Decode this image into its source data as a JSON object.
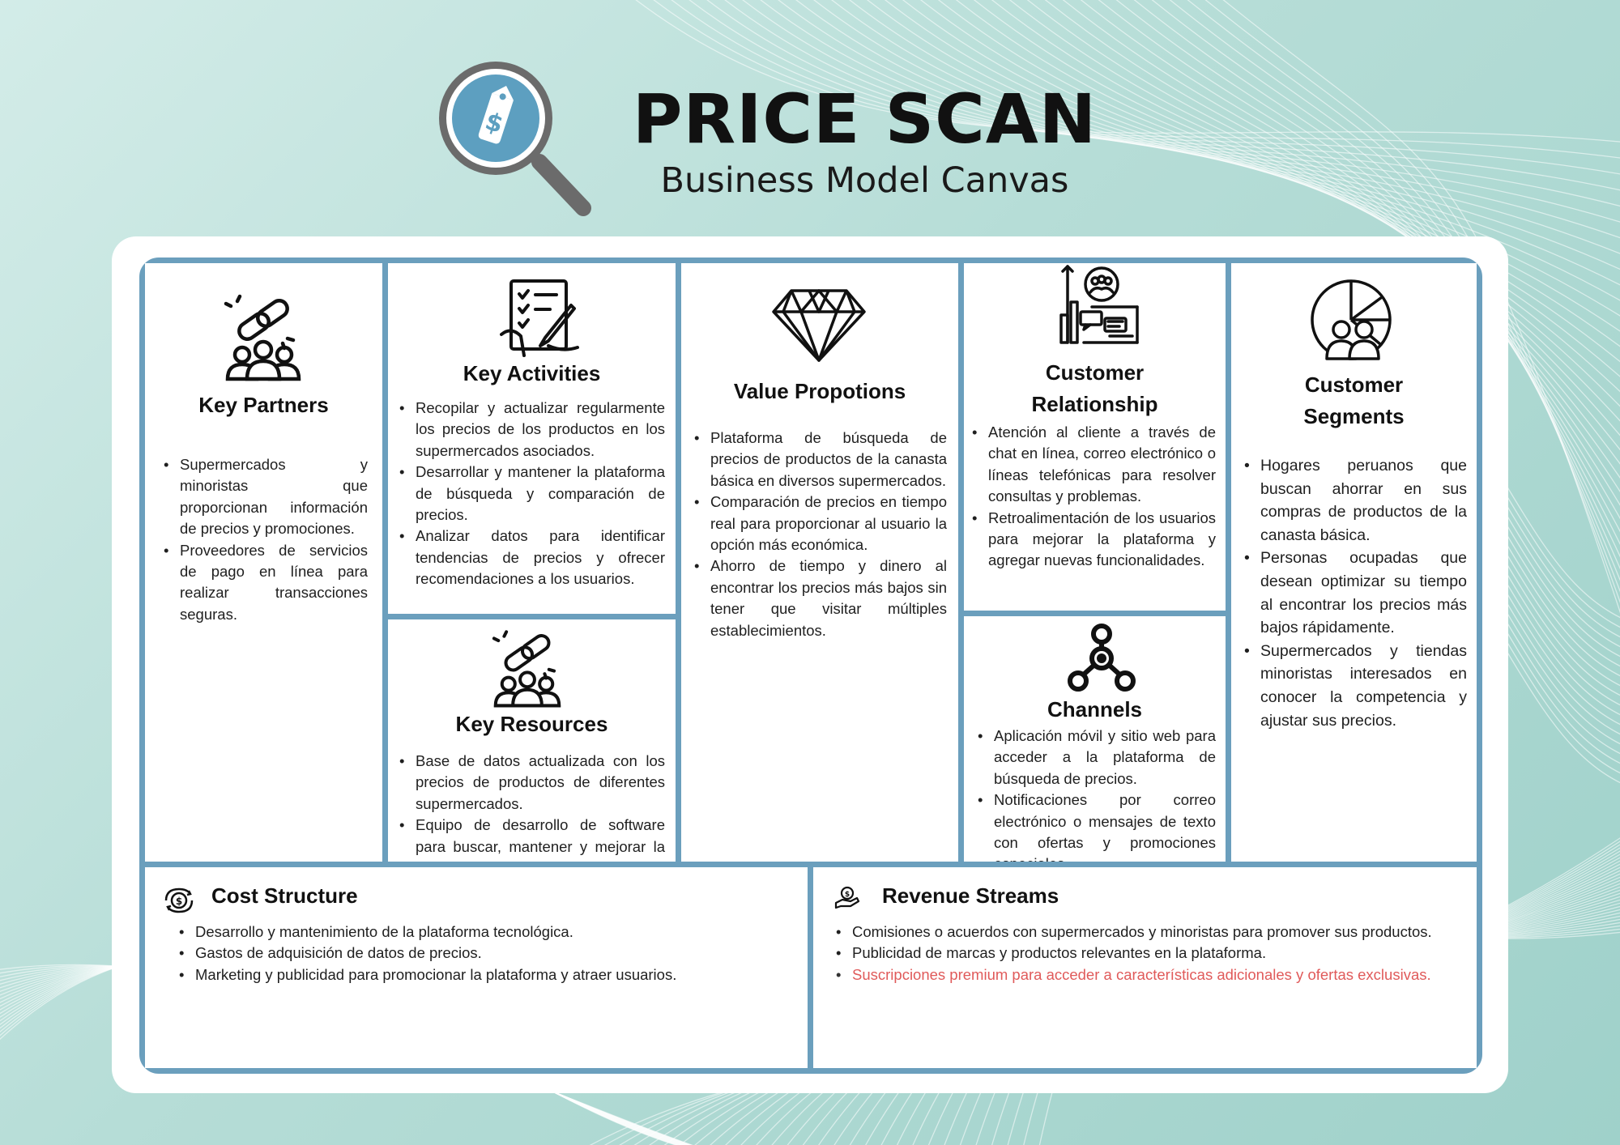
{
  "header": {
    "title": "PRICE SCAN",
    "subtitle": "Business Model Canvas",
    "logo_icon": "price-tag-magnifier-icon",
    "logo_symbol": "$"
  },
  "colors": {
    "frame": "#6b9fbd",
    "logo_circle": "#5d9fc0",
    "highlight_text": "#e05a5a"
  },
  "blocks": {
    "key_partners": {
      "title": "Key Partners",
      "icon": "chain-people-icon",
      "items": [
        "Supermercados y minoristas que proporcionan información de precios y promociones.",
        "Proveedores de servicios de pago en línea para realizar transacciones seguras."
      ]
    },
    "key_activities": {
      "title": "Key Activities",
      "icon": "checklist-pen-icon",
      "items": [
        "Recopilar y actualizar regularmente los precios de los productos en los supermercados asociados.",
        "Desarrollar y mantener la plataforma de búsqueda y comparación de precios.",
        "Analizar datos para identificar tendencias de precios y ofrecer recomendaciones a los usuarios."
      ]
    },
    "key_resources": {
      "title": "Key Resources",
      "icon": "chain-people-icon",
      "items": [
        "Base de datos actualizada con los precios de productos de diferentes supermercados.",
        "Equipo de desarrollo de software para buscar, mantener y mejorar la plataforma."
      ]
    },
    "value_propositions": {
      "title": "Value Propotions",
      "icon": "diamond-icon",
      "items": [
        "Plataforma de búsqueda de precios de productos de la canasta básica en diversos supermercados.",
        "Comparación de precios en tiempo real para proporcionar al usuario la opción más económica.",
        "Ahorro de tiempo y dinero al encontrar los precios más bajos sin tener que visitar múltiples establecimientos."
      ]
    },
    "customer_relationship": {
      "title_line1": "Customer",
      "title_line2": "Relationship",
      "icon": "customer-chart-icon",
      "items": [
        "Atención al cliente a través de chat en línea, correo electrónico o líneas telefónicas para resolver consultas y problemas.",
        "Retroalimentación de los usuarios para mejorar la plataforma y agregar nuevas funcionalidades."
      ]
    },
    "channels": {
      "title": "Channels",
      "icon": "network-nodes-icon",
      "items": [
        "Aplicación móvil y sitio web para acceder a la plataforma de búsqueda de precios.",
        "Notificaciones por correo electrónico o mensajes de texto con ofertas y promociones especiales."
      ]
    },
    "customer_segments": {
      "title_line1": "Customer",
      "title_line2": "Segments",
      "icon": "pie-chart-people-icon",
      "items": [
        "Hogares peruanos que buscan ahorrar en sus compras de productos de la canasta básica.",
        "Personas ocupadas que desean optimizar su tiempo al encontrar los precios más bajos rápidamente.",
        "Supermercados y tiendas minoristas interesados en conocer la competencia y ajustar sus precios."
      ]
    },
    "cost_structure": {
      "title": "Cost Structure",
      "icon": "cost-coin-icon",
      "items": [
        "Desarrollo y mantenimiento de la plataforma tecnológica.",
        "Gastos de adquisición de datos de precios.",
        "Marketing y publicidad para promocionar la plataforma y atraer usuarios."
      ]
    },
    "revenue_streams": {
      "title": "Revenue Streams",
      "icon": "hand-money-icon",
      "items": [
        "Comisiones o acuerdos con supermercados y minoristas para promover sus productos.",
        "Publicidad de marcas y productos relevantes en la plataforma.",
        "Suscripciones premium para acceder a características adicionales y ofertas exclusivas."
      ]
    }
  }
}
